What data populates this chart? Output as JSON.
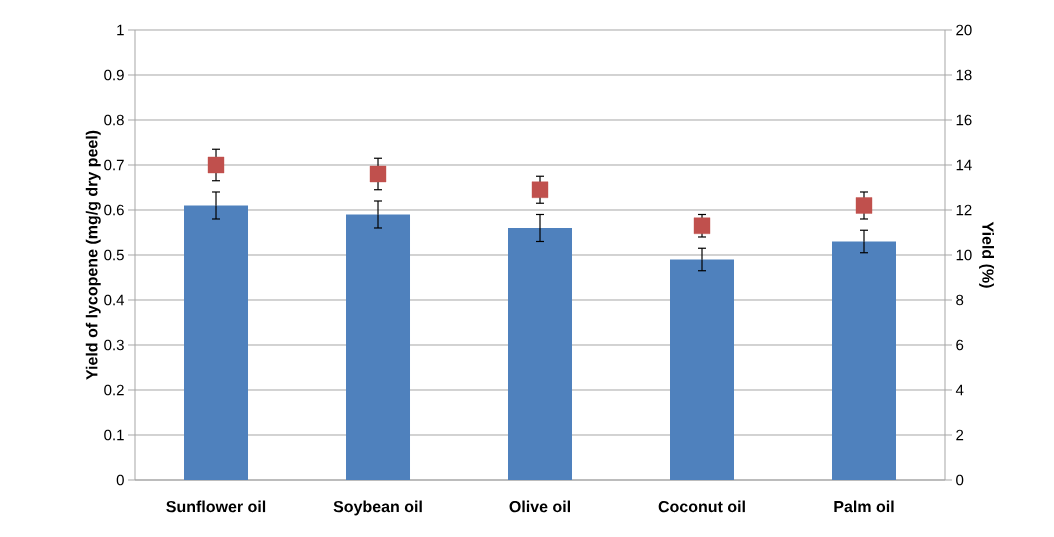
{
  "chart_data": {
    "type": "bar",
    "ylabel": "Yield of lycopene (mg/g dry peel)",
    "y2label": "Yield (%)",
    "categories": [
      "Sunflower oil",
      "Soybean oil",
      "Olive oil",
      "Coconut oil",
      "Palm oil"
    ],
    "series": [
      {
        "color": "#4f81bd",
        "values": [
          0.61,
          0.59,
          0.56,
          0.49,
          0.53
        ],
        "errors": [
          0.03,
          0.03,
          0.03,
          0.025,
          0.025
        ]
      },
      {
        "type": "scatter",
        "axis": "y2",
        "color": "#c0504d",
        "marker": "square",
        "values": [
          14.0,
          13.6,
          12.9,
          11.3,
          12.2
        ],
        "errors": [
          0.7,
          0.7,
          0.6,
          0.5,
          0.6
        ]
      }
    ],
    "ylim": [
      0,
      1
    ],
    "yticks": [
      0,
      0.1,
      0.2,
      0.3,
      0.4,
      0.5,
      0.6,
      0.7,
      0.8,
      0.9,
      1
    ],
    "y2lim": [
      0,
      20
    ],
    "y2ticks": [
      0,
      2,
      4,
      6,
      8,
      10,
      12,
      14,
      16,
      18,
      20
    ],
    "grid": "y"
  }
}
